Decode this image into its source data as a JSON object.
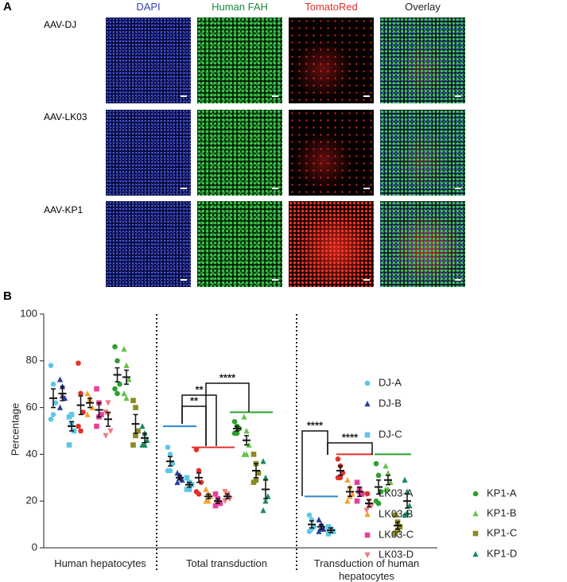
{
  "panel_a": {
    "label": "A",
    "columns": [
      "DAPI",
      "Human FAH",
      "TomatoRed",
      "Overlay"
    ],
    "rows": [
      "AAV-DJ",
      "AAV-LK03",
      "AAV-KP1"
    ]
  },
  "panel_b_label": "B",
  "chart_data": {
    "type": "dot",
    "ylabel": "Percentage",
    "categories": [
      "Human hepatocytes",
      "Total transduction",
      "Transduction of human hepatocytes"
    ],
    "ylim": [
      0,
      100
    ],
    "yticks": [
      0,
      20,
      40,
      60,
      80,
      100
    ],
    "series": [
      {
        "name": "DJ-A",
        "color": "#5ec6e8",
        "marker": "circle",
        "values": [
          64,
          37,
          10
        ],
        "errors": [
          4,
          2,
          1.5
        ],
        "points": [
          [
            78,
            70,
            62,
            55,
            57
          ],
          [
            43,
            40,
            36,
            33,
            33
          ],
          [
            14,
            12,
            9,
            7,
            8
          ]
        ]
      },
      {
        "name": "DJ-B",
        "color": "#2b3fa0",
        "marker": "triangle",
        "values": [
          66,
          30,
          9
        ],
        "errors": [
          3,
          1,
          1
        ],
        "points": [
          [
            72,
            69,
            64,
            60,
            65
          ],
          [
            32,
            31,
            29,
            28,
            30
          ],
          [
            12,
            10,
            8,
            7,
            8
          ]
        ]
      },
      {
        "name": "DJ-C",
        "color": "#5ec6e8",
        "marker": "square",
        "values": [
          52,
          27,
          7.5
        ],
        "errors": [
          2,
          1,
          1
        ],
        "points": [
          [
            56,
            53,
            50,
            44,
            57
          ],
          [
            30,
            28,
            27,
            25,
            25
          ],
          [
            9,
            8,
            7,
            6,
            7.5
          ]
        ]
      },
      {
        "name": "LK03-A",
        "color": "#e0312b",
        "marker": "circle",
        "values": [
          61,
          30,
          33
        ],
        "errors": [
          4,
          2,
          2
        ],
        "points": [
          [
            79,
            66,
            58,
            52,
            50
          ],
          [
            42,
            33,
            28,
            24,
            23
          ],
          [
            38,
            35,
            32,
            30,
            30
          ]
        ]
      },
      {
        "name": "LK03-B",
        "color": "#f5a030",
        "marker": "triangle",
        "values": [
          62,
          22,
          24
        ],
        "errors": [
          2,
          1,
          2
        ],
        "points": [
          [
            66,
            64,
            60,
            57,
            63
          ],
          [
            25,
            23,
            22,
            20,
            20
          ],
          [
            29,
            26,
            23,
            20,
            22
          ]
        ]
      },
      {
        "name": "LK03-C",
        "color": "#e8409a",
        "marker": "square",
        "values": [
          59,
          20,
          24
        ],
        "errors": [
          3,
          1,
          2
        ],
        "points": [
          [
            68,
            62,
            57,
            52,
            56
          ],
          [
            23,
            21,
            19,
            18,
            19
          ],
          [
            28,
            25,
            23,
            20,
            24
          ]
        ]
      },
      {
        "name": "LK03-D",
        "color": "#f07a80",
        "marker": "triangle-down",
        "values": [
          55,
          22,
          19
        ],
        "errors": [
          3,
          1,
          1.5
        ],
        "points": [
          [
            58,
            62,
            50,
            48,
            57
          ],
          [
            24,
            23,
            21,
            20,
            22
          ],
          [
            23,
            20,
            18,
            16,
            18
          ]
        ]
      },
      {
        "name": "KP1-A",
        "color": "#2ca02c",
        "marker": "circle",
        "values": [
          74,
          51,
          26
        ],
        "errors": [
          3,
          1,
          3
        ],
        "points": [
          [
            86,
            80,
            70,
            68,
            66
          ],
          [
            54,
            52,
            51,
            49,
            49
          ],
          [
            36,
            31,
            24,
            20,
            19
          ]
        ]
      },
      {
        "name": "KP1-B",
        "color": "#66c24a",
        "marker": "triangle",
        "values": [
          73,
          46,
          29
        ],
        "errors": [
          3,
          2,
          2
        ],
        "points": [
          [
            85,
            78,
            72,
            66,
            64
          ],
          [
            56,
            50,
            44,
            40,
            40
          ],
          [
            35,
            32,
            28,
            25,
            25
          ]
        ]
      },
      {
        "name": "KP1-C",
        "color": "#8a8a20",
        "marker": "square",
        "values": [
          53,
          33,
          9.5
        ],
        "errors": [
          4,
          3,
          1.5
        ],
        "points": [
          [
            63,
            60,
            50,
            44,
            48
          ],
          [
            40,
            36,
            32,
            28,
            29
          ],
          [
            14,
            11,
            9,
            6,
            7.5
          ]
        ]
      },
      {
        "name": "KP1-D",
        "color": "#1a8a60",
        "marker": "triangle",
        "values": [
          47,
          25,
          20
        ],
        "errors": [
          2,
          4,
          3
        ],
        "points": [
          [
            52,
            49,
            46,
            44,
            44
          ],
          [
            37,
            30,
            22,
            16,
            20
          ],
          [
            29,
            24,
            18,
            14,
            15
          ]
        ]
      }
    ],
    "group_lines": [
      {
        "color": "#2e86c8",
        "values": [
          null,
          52,
          22
        ]
      },
      {
        "color": "#e0312b",
        "values": [
          null,
          43,
          40
        ]
      },
      {
        "color": "#2ca02c",
        "values": [
          null,
          58,
          40
        ]
      }
    ],
    "significance": [
      "**",
      "**",
      "****",
      "****",
      "****"
    ]
  }
}
